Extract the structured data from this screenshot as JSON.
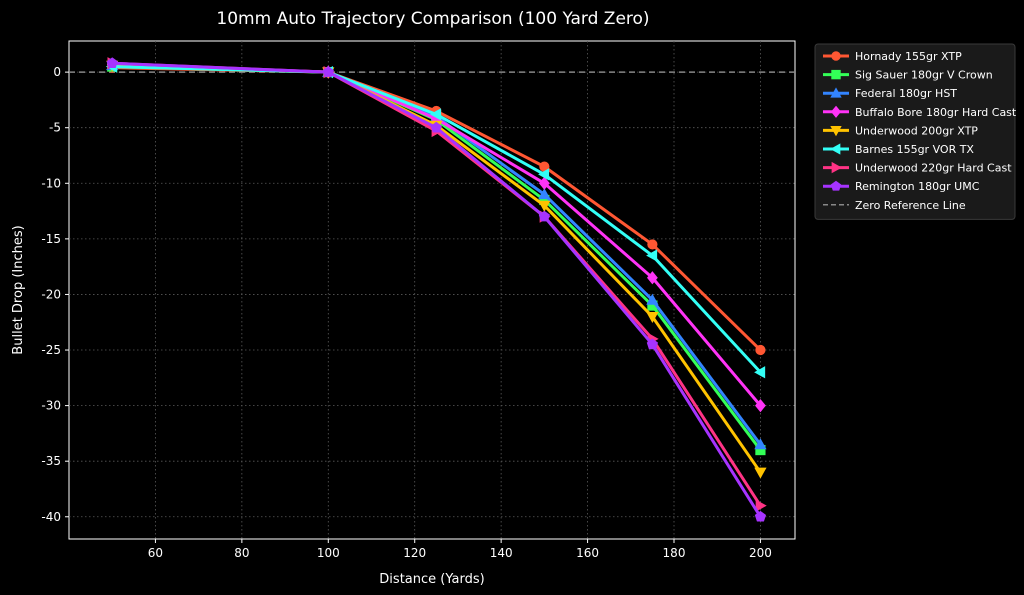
{
  "chart_data": {
    "type": "line",
    "title": "10mm Auto Trajectory Comparison (100 Yard Zero)",
    "xlabel": "Distance (Yards)",
    "ylabel": "Bullet Drop (Inches)",
    "xlim": [
      40,
      208
    ],
    "ylim": [
      -42,
      2.8
    ],
    "x_ticks": [
      60,
      80,
      100,
      120,
      140,
      160,
      180,
      200
    ],
    "y_ticks": [
      0,
      -5,
      -10,
      -15,
      -20,
      -25,
      -30,
      -35,
      -40
    ],
    "grid": true,
    "legend_position": "outside-right",
    "x": [
      50,
      100,
      125,
      150,
      175,
      200
    ],
    "series": [
      {
        "name": "Hornady 155gr XTP",
        "color": "#ff5733",
        "marker": "circle",
        "values": [
          0.4,
          0,
          -3.5,
          -8.5,
          -15.5,
          -25.0
        ]
      },
      {
        "name": "Sig Sauer 180gr V Crown",
        "color": "#33ff57",
        "marker": "square",
        "values": [
          0.5,
          0,
          -4.3,
          -11.5,
          -21.0,
          -34.0
        ]
      },
      {
        "name": "Federal 180gr HST",
        "color": "#3385ff",
        "marker": "triangle-up",
        "values": [
          0.6,
          0,
          -4.0,
          -11.0,
          -20.5,
          -33.5
        ]
      },
      {
        "name": "Buffalo Bore 180gr Hard Cast",
        "color": "#ff33f6",
        "marker": "diamond",
        "values": [
          0.7,
          0,
          -4.2,
          -10.0,
          -18.5,
          -30.0
        ]
      },
      {
        "name": "Underwood 200gr XTP",
        "color": "#ffc300",
        "marker": "triangle-down",
        "values": [
          0.6,
          0,
          -4.8,
          -12.0,
          -22.0,
          -36.0
        ]
      },
      {
        "name": "Barnes 155gr VOR TX",
        "color": "#33fff6",
        "marker": "triangle-left",
        "values": [
          0.5,
          0,
          -3.8,
          -9.2,
          -16.5,
          -27.0
        ]
      },
      {
        "name": "Underwood 220gr Hard Cast",
        "color": "#ff3385",
        "marker": "triangle-right",
        "values": [
          0.8,
          0,
          -5.3,
          -13.0,
          -24.0,
          -39.0
        ]
      },
      {
        "name": "Remington 180gr UMC",
        "color": "#a633ff",
        "marker": "pentagon",
        "values": [
          0.8,
          0,
          -5.0,
          -13.0,
          -24.5,
          -40.0
        ]
      }
    ],
    "reference_line": {
      "name": "Zero Reference Line",
      "y": 0,
      "color": "#888888"
    }
  }
}
